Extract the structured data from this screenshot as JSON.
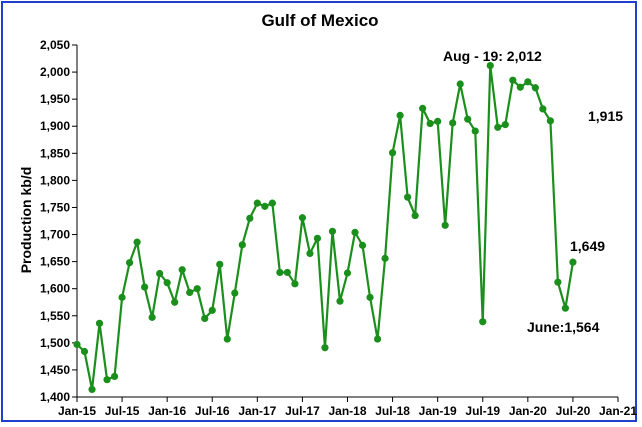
{
  "chart_data": {
    "type": "line",
    "title": "Gulf of Mexico",
    "xlabel": "",
    "ylabel": "Production kb/d",
    "ylim": [
      1400,
      2050
    ],
    "yticks": [
      1400,
      1450,
      1500,
      1550,
      1600,
      1650,
      1700,
      1750,
      1800,
      1850,
      1900,
      1950,
      2000,
      2050
    ],
    "ytick_labels": [
      "1,400",
      "1,450",
      "1,500",
      "1,550",
      "1,600",
      "1,650",
      "1,700",
      "1,750",
      "1,800",
      "1,850",
      "1,900",
      "1,950",
      "2,000",
      "2,050"
    ],
    "xlim": [
      "Jan-15",
      "Jan-21"
    ],
    "xtick_labels": [
      "Jan-15",
      "Jul-15",
      "Jan-16",
      "Jul-16",
      "Jan-17",
      "Jul-17",
      "Jan-18",
      "Jul-18",
      "Jan-19",
      "Jul-19",
      "Jan-20",
      "Jul-20",
      "Jan-21"
    ],
    "grid": false,
    "line_color": "#1b8f1b",
    "series": [
      {
        "name": "",
        "x": [
          "Jan-15",
          "Feb-15",
          "Mar-15",
          "Apr-15",
          "May-15",
          "Jun-15",
          "Jul-15",
          "Aug-15",
          "Sep-15",
          "Oct-15",
          "Nov-15",
          "Dec-15",
          "Jan-16",
          "Feb-16",
          "Mar-16",
          "Apr-16",
          "May-16",
          "Jun-16",
          "Jul-16",
          "Aug-16",
          "Sep-16",
          "Oct-16",
          "Nov-16",
          "Dec-16",
          "Jan-17",
          "Feb-17",
          "Mar-17",
          "Apr-17",
          "May-17",
          "Jun-17",
          "Jul-17",
          "Aug-17",
          "Sep-17",
          "Oct-17",
          "Nov-17",
          "Dec-17",
          "Jan-18",
          "Feb-18",
          "Mar-18",
          "Apr-18",
          "May-18",
          "Jun-18",
          "Jul-18",
          "Aug-18",
          "Sep-18",
          "Oct-18",
          "Nov-18",
          "Dec-18",
          "Jan-19",
          "Feb-19",
          "Mar-19",
          "Apr-19",
          "May-19",
          "Jun-19",
          "Jul-19",
          "Aug-19",
          "Sep-19",
          "Oct-19",
          "Nov-19",
          "Dec-19",
          "Jan-20",
          "Feb-20",
          "Mar-20",
          "Apr-20",
          "May-20",
          "Jun-20",
          "Jul-20"
        ],
        "values": [
          1497,
          1484,
          1414,
          1536,
          1432,
          1438,
          1584,
          1648,
          1686,
          1603,
          1547,
          1628,
          1611,
          1575,
          1635,
          1593,
          1600,
          1545,
          1560,
          1645,
          1507,
          1592,
          1681,
          1730,
          1758,
          1752,
          1758,
          1630,
          1630,
          1609,
          1731,
          1665,
          1693,
          1491,
          1706,
          1577,
          1629,
          1704,
          1680,
          1584,
          1507,
          1656,
          1851,
          1920,
          1769,
          1735,
          1933,
          1905,
          1909,
          1717,
          1906,
          1978,
          1913,
          1891,
          1539,
          2012,
          1898,
          1903,
          1985,
          1972,
          1982,
          1971,
          1932,
          1910,
          1612,
          1564,
          1649
        ]
      }
    ],
    "annotations": [
      {
        "text": "Aug - 19: 2,012"
      },
      {
        "text": "1,915"
      },
      {
        "text": "1,649"
      },
      {
        "text": "June:1,564"
      }
    ]
  }
}
